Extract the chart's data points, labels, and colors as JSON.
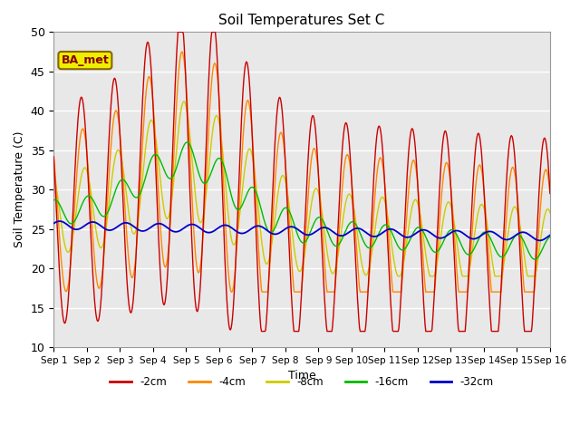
{
  "title": "Soil Temperatures Set C",
  "xlabel": "Time",
  "ylabel": "Soil Temperature (C)",
  "ylim": [
    10,
    50
  ],
  "xlim": [
    0,
    15
  ],
  "xtick_labels": [
    "Sep 1",
    "Sep 2",
    "Sep 3",
    "Sep 4",
    "Sep 5",
    "Sep 6",
    "Sep 7",
    "Sep 8",
    "Sep 9",
    "Sep 10",
    "Sep 11",
    "Sep 12",
    "Sep 13",
    "Sep 14",
    "Sep 15",
    "Sep 16"
  ],
  "ytick_vals": [
    10,
    15,
    20,
    25,
    30,
    35,
    40,
    45,
    50
  ],
  "colors": {
    "-2cm": "#cc0000",
    "-4cm": "#ff8800",
    "-8cm": "#cccc00",
    "-16cm": "#00bb00",
    "-32cm": "#0000cc"
  },
  "legend_labels": [
    "-2cm",
    "-4cm",
    "-8cm",
    "-16cm",
    "-32cm"
  ],
  "annotation_text": "BA_met",
  "annotation_bg": "#eeee00",
  "annotation_border": "#886600",
  "annotation_text_color": "#880000",
  "plot_bg_color": "#e8e8e8",
  "fig_bg_color": "#ffffff",
  "grid_color": "#ffffff",
  "figsize": [
    6.4,
    4.8
  ],
  "dpi": 100
}
